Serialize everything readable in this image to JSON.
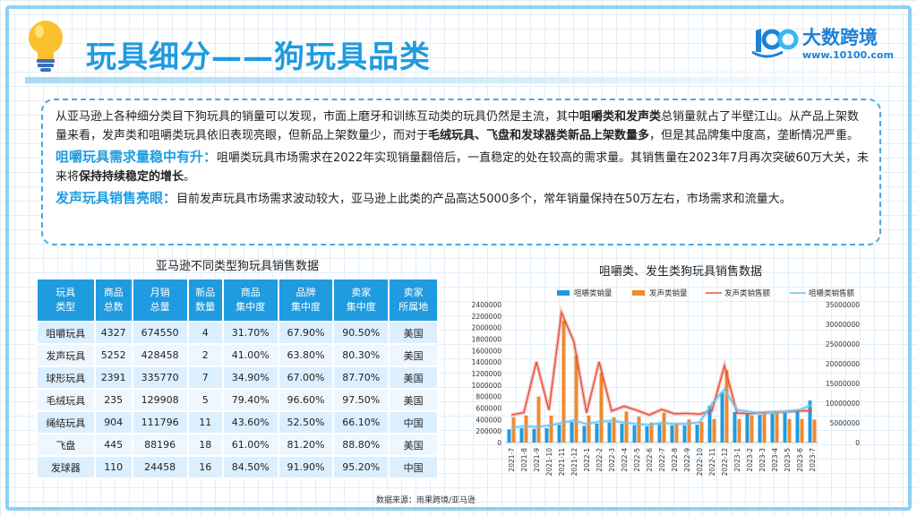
{
  "header": {
    "title": "玩具细分——狗玩具品类",
    "logo_name": "大数跨境",
    "logo_url": "www.10100.com"
  },
  "intro": {
    "p1_a": "从亚马逊上各种细分类目下狗玩具的销量可以发现，市面上磨牙和训练互动类的玩具仍然是主流，其中",
    "p1_b": "咀嚼类和发声类",
    "p1_c": "总销量就占了半壁江山。从产品上架数量来看，发声类和咀嚼类玩具依旧表现亮眼，但新品上架数量少，而对于",
    "p1_d": "毛绒玩具、飞盘和发球器类新品上架数量多",
    "p1_e": "，但是其品牌集中度高，垄断情况严重。",
    "p2_head": "咀嚼玩具需求量稳中有升：",
    "p2_a": "咀嚼类玩具市场需求在2022年实现销量翻倍后，一直稳定的处在较高的需求量。其销售量在2023年7月再次突破60万大关，未来将",
    "p2_b": "保持持续稳定的增长",
    "p2_c": "。",
    "p3_head": "发声玩具销售亮眼：",
    "p3_a": "目前发声玩具市场需求波动较大，亚马逊上此类的产品高达5000多个，常年销量保持在50万左右，市场需求和流量大。"
  },
  "table": {
    "title": "亚马逊不同类型狗玩具销售数据",
    "headers": [
      [
        "玩具",
        "类型"
      ],
      [
        "商品",
        "总数"
      ],
      [
        "月销",
        "总量"
      ],
      [
        "新品",
        "数量"
      ],
      [
        "商品",
        "集中度"
      ],
      [
        "品牌",
        "集中度"
      ],
      [
        "卖家",
        "集中度"
      ],
      [
        "卖家",
        "所属地"
      ]
    ],
    "rows": [
      [
        "咀嚼玩具",
        "4327",
        "674550",
        "4",
        "31.70%",
        "67.90%",
        "90.50%",
        "美国"
      ],
      [
        "发声玩具",
        "5252",
        "428458",
        "2",
        "41.00%",
        "63.80%",
        "80.30%",
        "美国"
      ],
      [
        "球形玩具",
        "2391",
        "335770",
        "7",
        "34.90%",
        "67.00%",
        "87.70%",
        "美国"
      ],
      [
        "毛绒玩具",
        "235",
        "129908",
        "5",
        "79.40%",
        "96.60%",
        "97.50%",
        "美国"
      ],
      [
        "绳结玩具",
        "904",
        "111796",
        "11",
        "43.60%",
        "52.50%",
        "66.10%",
        "中国"
      ],
      [
        "飞盘",
        "445",
        "88196",
        "18",
        "61.00%",
        "81.20%",
        "88.80%",
        "美国"
      ],
      [
        "发球器",
        "110",
        "24458",
        "16",
        "84.50%",
        "91.90%",
        "95.20%",
        "中国"
      ]
    ]
  },
  "chart_data": {
    "type": "bar",
    "title": "咀嚼类、发生类狗玩具销售数据",
    "categories": [
      "2021-7",
      "2021-8",
      "2021-9",
      "2021-10",
      "2021-11",
      "2021-12",
      "2022-1",
      "2022-2",
      "2022-3",
      "2022-4",
      "2022-5",
      "2022-6",
      "2022-7",
      "2022-8",
      "2022-9",
      "2022-10",
      "2022-11",
      "2022-12",
      "2023-1",
      "2023-2",
      "2023-3",
      "2023-4",
      "2023-5",
      "2023-6",
      "2023-7"
    ],
    "left_ticks": [
      "0",
      "200000",
      "400000",
      "600000",
      "800000",
      "1000000",
      "1200000",
      "1400000",
      "1600000",
      "1800000",
      "2000000",
      "2200000",
      "2400000"
    ],
    "right_ticks": [
      "0",
      "5000000",
      "10000000",
      "15000000",
      "20000000",
      "25000000",
      "30000000",
      "35000000"
    ],
    "ylim": [
      0,
      2400000
    ],
    "ylim_right": [
      0,
      35000000
    ],
    "series": [
      {
        "name": "咀嚼类销量",
        "kind": "bar",
        "axis": "left",
        "color": "#1f9be0",
        "values": [
          230000,
          250000,
          240000,
          250000,
          310000,
          360000,
          290000,
          330000,
          350000,
          330000,
          300000,
          280000,
          320000,
          300000,
          300000,
          310000,
          640000,
          870000,
          530000,
          510000,
          480000,
          500000,
          520000,
          560000,
          730000
        ]
      },
      {
        "name": "发声类销量",
        "kind": "bar",
        "axis": "left",
        "color": "#ef8a2e",
        "values": [
          440000,
          470000,
          800000,
          470000,
          2120000,
          1520000,
          470000,
          1210000,
          440000,
          540000,
          450000,
          350000,
          520000,
          340000,
          400000,
          360000,
          410000,
          1260000,
          410000,
          470000,
          510000,
          520000,
          410000,
          410000,
          400000
        ]
      },
      {
        "name": "发声类销售额",
        "kind": "line",
        "axis": "right",
        "color": "#e8523e",
        "values": [
          7000000,
          7600000,
          20500000,
          8200000,
          33000000,
          25500000,
          7500000,
          20500000,
          8000000,
          9200000,
          8200000,
          7000000,
          8400000,
          7300000,
          7400000,
          7200000,
          8000000,
          19500000,
          7500000,
          7300000,
          7600000,
          7700000,
          7800000,
          8000000,
          8100000
        ]
      },
      {
        "name": "咀嚼类销售额",
        "kind": "line",
        "axis": "right",
        "color": "#6ac4ee",
        "values": [
          3800000,
          4100000,
          4000000,
          4300000,
          5000000,
          5600000,
          4700000,
          5300000,
          5500000,
          5100000,
          4700000,
          4500000,
          5000000,
          4700000,
          4800000,
          5100000,
          9800000,
          13500000,
          8300000,
          7800000,
          7400000,
          7700000,
          7900000,
          8300000,
          9600000
        ]
      }
    ],
    "legend_position": "top"
  },
  "source": "数据来源：雨果跨境/亚马逊",
  "colors": {
    "accent": "#1f9be0",
    "frame": "#8fd0f3",
    "bar_chew": "#1f9be0",
    "bar_sound": "#ef8a2e"
  },
  "icons": {
    "bulb": "lightbulb-icon",
    "logo": "brand-logo-icon"
  }
}
